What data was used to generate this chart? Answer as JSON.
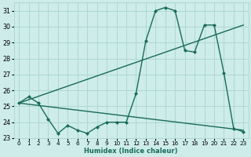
{
  "bg_color": "#cdecea",
  "grid_color": "#aed8d4",
  "line_color": "#1a6b5a",
  "xlabel": "Humidex (Indice chaleur)",
  "xlim": [
    -0.5,
    23.5
  ],
  "ylim": [
    23,
    31.5
  ],
  "yticks": [
    23,
    24,
    25,
    26,
    27,
    28,
    29,
    30,
    31
  ],
  "xticks": [
    0,
    1,
    2,
    3,
    4,
    5,
    6,
    7,
    8,
    9,
    10,
    11,
    12,
    13,
    14,
    15,
    16,
    17,
    18,
    19,
    20,
    21,
    22,
    23
  ],
  "series": [
    {
      "x": [
        0,
        1,
        2,
        3,
        4,
        5,
        6,
        7,
        8,
        9,
        10,
        11,
        12,
        13,
        14,
        15,
        16,
        17,
        18,
        19,
        20,
        21,
        22,
        23
      ],
      "y": [
        25.2,
        25.6,
        25.2,
        24.2,
        23.3,
        23.8,
        23.5,
        23.3,
        23.7,
        24.0,
        24.0,
        24.0,
        25.8,
        29.1,
        31.0,
        31.2,
        31.0,
        28.5,
        28.4,
        30.1,
        30.1,
        27.1,
        23.6,
        23.4
      ],
      "marker": "D",
      "markersize": 2.0,
      "linewidth": 1.0
    },
    {
      "x": [
        0,
        23
      ],
      "y": [
        25.2,
        30.1
      ],
      "marker": null,
      "markersize": 0,
      "linewidth": 1.0
    },
    {
      "x": [
        0,
        23
      ],
      "y": [
        25.2,
        23.5
      ],
      "marker": null,
      "markersize": 0,
      "linewidth": 1.0
    }
  ]
}
